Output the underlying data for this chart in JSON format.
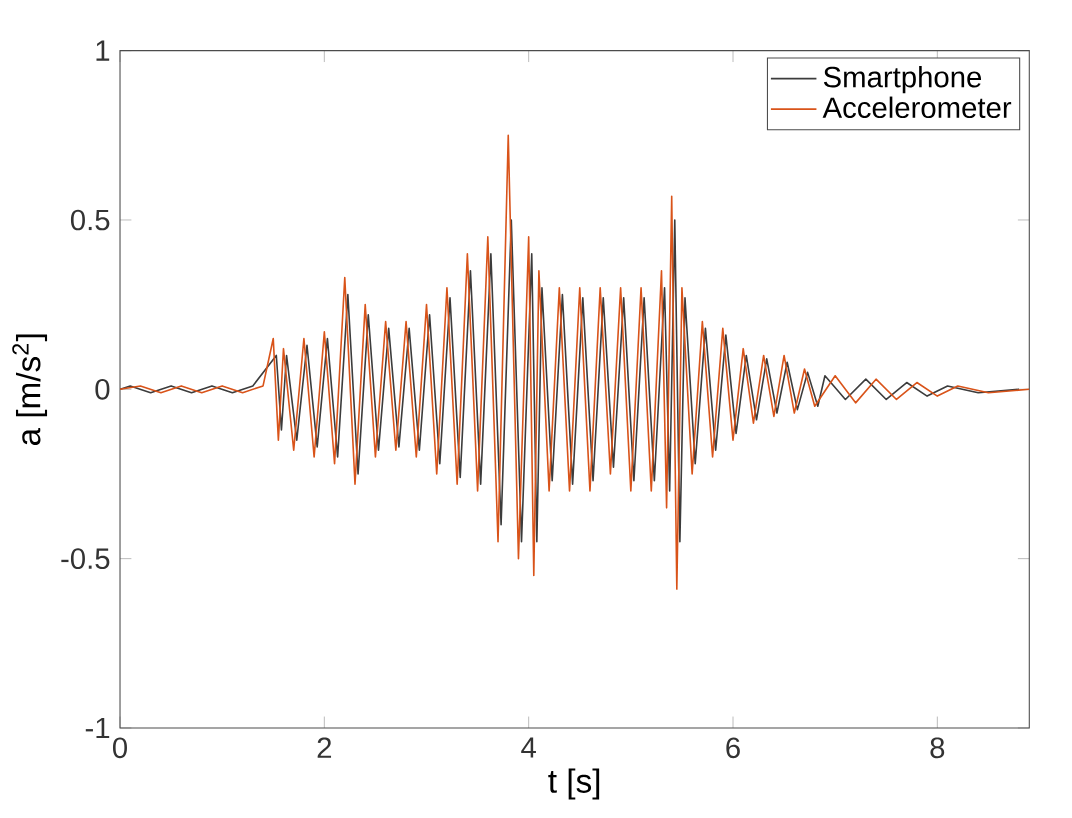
{
  "chart_data": {
    "type": "line",
    "xlabel": "t [s]",
    "ylabel": "a [m/s$^{2}$]",
    "xlim": [
      0,
      8.9
    ],
    "ylim": [
      -1,
      1
    ],
    "xticks": [
      0,
      2,
      4,
      6,
      8
    ],
    "yticks": [
      -1,
      -0.5,
      0,
      0.5,
      1
    ],
    "legend": "top right",
    "grid": false,
    "x": [
      0,
      0.2,
      0.4,
      0.6,
      0.8,
      1.0,
      1.2,
      1.4,
      1.5,
      1.55,
      1.6,
      1.7,
      1.8,
      1.9,
      2.0,
      2.1,
      2.2,
      2.3,
      2.4,
      2.5,
      2.6,
      2.7,
      2.8,
      2.9,
      3.0,
      3.1,
      3.2,
      3.3,
      3.4,
      3.5,
      3.6,
      3.7,
      3.8,
      3.9,
      4.0,
      4.05,
      4.1,
      4.2,
      4.3,
      4.4,
      4.5,
      4.6,
      4.7,
      4.8,
      4.9,
      5.0,
      5.1,
      5.2,
      5.3,
      5.35,
      5.4,
      5.45,
      5.5,
      5.6,
      5.7,
      5.8,
      5.9,
      6.0,
      6.1,
      6.2,
      6.3,
      6.4,
      6.5,
      6.6,
      6.7,
      6.8,
      7.0,
      7.2,
      7.4,
      7.6,
      7.8,
      8.0,
      8.2,
      8.5,
      8.9
    ],
    "series": [
      {
        "name": "Smartphone",
        "color": "#3c3c3c",
        "x": [
          0,
          0.1,
          0.3,
          0.5,
          0.7,
          0.9,
          1.1,
          1.3,
          1.53,
          1.58,
          1.63,
          1.73,
          1.83,
          1.93,
          2.03,
          2.13,
          2.23,
          2.33,
          2.43,
          2.53,
          2.63,
          2.73,
          2.83,
          2.93,
          3.03,
          3.13,
          3.23,
          3.33,
          3.43,
          3.53,
          3.63,
          3.73,
          3.83,
          3.93,
          4.03,
          4.08,
          4.13,
          4.23,
          4.33,
          4.43,
          4.53,
          4.63,
          4.73,
          4.83,
          4.93,
          5.03,
          5.13,
          5.23,
          5.33,
          5.38,
          5.43,
          5.48,
          5.53,
          5.63,
          5.73,
          5.83,
          5.93,
          6.03,
          6.13,
          6.23,
          6.33,
          6.43,
          6.53,
          6.63,
          6.73,
          6.83,
          6.9,
          7.1,
          7.3,
          7.5,
          7.7,
          7.9,
          8.1,
          8.4,
          8.8
        ],
        "values": [
          0,
          0.01,
          -0.01,
          0.01,
          -0.01,
          0.01,
          -0.01,
          0.01,
          0.1,
          -0.12,
          0.1,
          -0.15,
          0.13,
          -0.17,
          0.15,
          -0.2,
          0.28,
          -0.25,
          0.22,
          -0.18,
          0.18,
          -0.17,
          0.18,
          -0.18,
          0.22,
          -0.22,
          0.27,
          -0.26,
          0.35,
          -0.28,
          0.4,
          -0.4,
          0.5,
          -0.45,
          0.4,
          -0.45,
          0.3,
          -0.27,
          0.28,
          -0.28,
          0.27,
          -0.27,
          0.27,
          -0.23,
          0.27,
          -0.27,
          0.27,
          -0.27,
          0.3,
          -0.3,
          0.5,
          -0.45,
          0.27,
          -0.22,
          0.18,
          -0.18,
          0.16,
          -0.13,
          0.1,
          -0.09,
          0.09,
          -0.07,
          0.08,
          -0.06,
          0.05,
          -0.05,
          0.04,
          -0.03,
          0.03,
          -0.03,
          0.02,
          -0.02,
          0.01,
          -0.01,
          0
        ]
      },
      {
        "name": "Accelerometer",
        "color": "#d95319",
        "values": [
          0,
          0.01,
          -0.01,
          0.01,
          -0.01,
          0.01,
          -0.01,
          0.01,
          0.15,
          -0.15,
          0.12,
          -0.18,
          0.15,
          -0.2,
          0.17,
          -0.22,
          0.33,
          -0.28,
          0.25,
          -0.2,
          0.2,
          -0.18,
          0.2,
          -0.2,
          0.25,
          -0.25,
          0.3,
          -0.28,
          0.4,
          -0.3,
          0.45,
          -0.45,
          0.75,
          -0.5,
          0.45,
          -0.55,
          0.35,
          -0.3,
          0.3,
          -0.3,
          0.3,
          -0.3,
          0.3,
          -0.25,
          0.3,
          -0.3,
          0.3,
          -0.3,
          0.35,
          -0.35,
          0.57,
          -0.59,
          0.3,
          -0.25,
          0.2,
          -0.2,
          0.18,
          -0.15,
          0.12,
          -0.1,
          0.1,
          -0.08,
          0.1,
          -0.07,
          0.06,
          -0.05,
          0.04,
          -0.04,
          0.03,
          -0.03,
          0.02,
          -0.02,
          0.01,
          -0.01,
          0
        ]
      }
    ]
  }
}
